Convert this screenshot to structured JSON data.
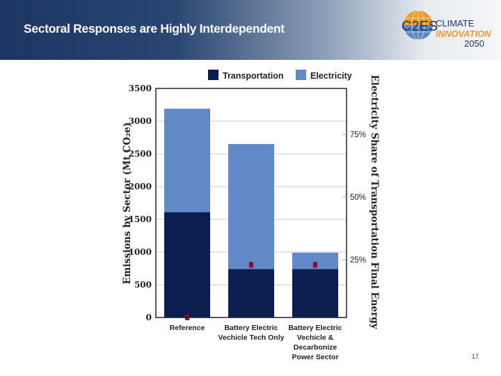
{
  "slide": {
    "title": "Sectoral Responses are Highly Interdependent",
    "page_number": "17",
    "logo": {
      "mark": "C2ES",
      "line1": "CLIMATE",
      "line2": "INNOVATION",
      "line3": "2050"
    }
  },
  "chart_data": {
    "type": "bar",
    "stacked": true,
    "categories": [
      [
        "Reference"
      ],
      [
        "Battery Electric",
        "Vechicle Tech Only"
      ],
      [
        "Battery Electric",
        "Vechicle &",
        "Decarbonize",
        "Power Sector"
      ]
    ],
    "series": [
      {
        "name": "Transportation",
        "color": "#0a1f4f",
        "values": [
          1610,
          740,
          740
        ]
      },
      {
        "name": "Electricity",
        "color": "#6189c8",
        "values": [
          1580,
          1910,
          250
        ]
      }
    ],
    "secondary_series": {
      "name": "Electricity Share of Transportation Final Energy",
      "color": "#8b0a2a",
      "values": [
        2,
        23,
        23
      ],
      "unit": "%"
    },
    "ylabel": "Emissions by Sector (Mt CO₂e)",
    "y2label": "Electricity Share of Transportation Final Energy",
    "ylim": [
      0,
      3500
    ],
    "yticks": [
      0,
      500,
      1000,
      1500,
      2000,
      2500,
      3000,
      3500
    ],
    "y2ticks": [
      "25%",
      "50%",
      "75%"
    ],
    "y2tick_values": [
      25,
      50,
      75
    ],
    "grid": true,
    "legend": "top"
  }
}
